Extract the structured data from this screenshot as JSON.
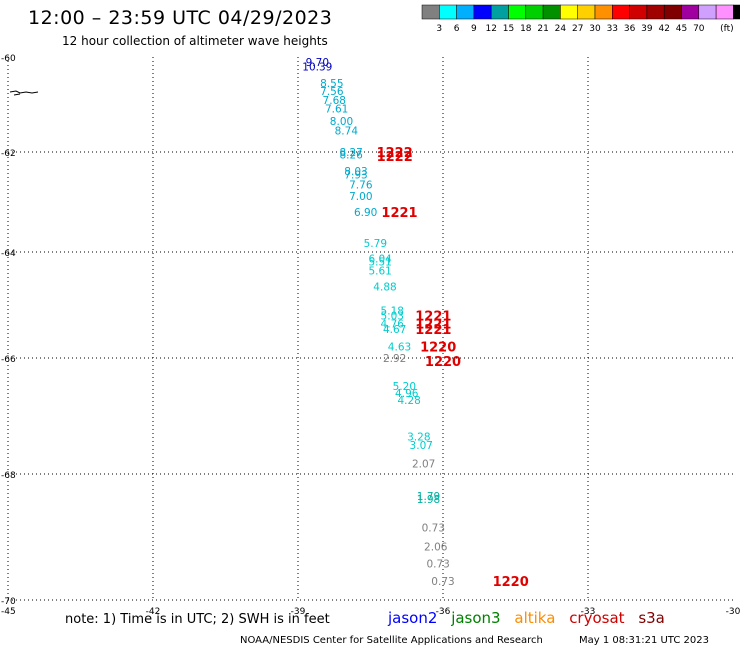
{
  "header": {
    "title": "12:00 – 23:59 UTC 04/29/2023",
    "subtitle": "12 hour collection of altimeter wave heights"
  },
  "colorbar": {
    "colors": [
      "#808080",
      "#00ffff",
      "#00b0ff",
      "#0000ff",
      "#00a0a0",
      "#00ff00",
      "#00d000",
      "#009000",
      "#ffff00",
      "#ffd000",
      "#ff9000",
      "#ff0000",
      "#d00000",
      "#a00000",
      "#800000",
      "#a000a0",
      "#d0a0ff",
      "#ff90ff",
      "#000000"
    ],
    "labels": [
      "3",
      "6",
      "9",
      "12",
      "15",
      "18",
      "21",
      "24",
      "27",
      "30",
      "33",
      "36",
      "39",
      "42",
      "45",
      "70"
    ],
    "unit": "(ft)"
  },
  "axes": {
    "lon_ticks": [
      "-45",
      "-42",
      "-39",
      "-36",
      "-33",
      "-30"
    ],
    "lat_ticks": [
      "-60",
      "-62",
      "-64",
      "-66",
      "-68",
      "-70"
    ]
  },
  "chart_data": {
    "type": "scatter",
    "xlabel": "",
    "ylabel": "",
    "xlim": [
      -45,
      -30
    ],
    "ylim": [
      -70,
      -60
    ],
    "grid": true,
    "points": [
      {
        "lon": -38.6,
        "lat": -60.1,
        "v": "9.70",
        "color": "#0000c0"
      },
      {
        "lon": -38.6,
        "lat": -60.2,
        "v": "10.39",
        "color": "#0000c0"
      },
      {
        "lon": -38.3,
        "lat": -60.55,
        "v": "8.55",
        "color": "#00aacc"
      },
      {
        "lon": -38.3,
        "lat": -60.72,
        "v": "7.56",
        "color": "#00aacc"
      },
      {
        "lon": -38.25,
        "lat": -60.9,
        "v": "7.68",
        "color": "#00aacc"
      },
      {
        "lon": -38.2,
        "lat": -61.08,
        "v": "7.61",
        "color": "#00aacc"
      },
      {
        "lon": -38.1,
        "lat": -61.35,
        "v": "8.00",
        "color": "#00aacc"
      },
      {
        "lon": -38.0,
        "lat": -61.55,
        "v": "8.74",
        "color": "#00aacc"
      },
      {
        "lon": -37.9,
        "lat": -62.0,
        "v": "8.27",
        "color": "#00aacc"
      },
      {
        "lon": -37.9,
        "lat": -62.05,
        "v": "8.26",
        "color": "#00aacc"
      },
      {
        "lon": -37.8,
        "lat": -62.38,
        "v": "8.03",
        "color": "#00aacc"
      },
      {
        "lon": -37.8,
        "lat": -62.45,
        "v": "7.93",
        "color": "#00aacc"
      },
      {
        "lon": -37.7,
        "lat": -62.65,
        "v": "7.76",
        "color": "#00aacc"
      },
      {
        "lon": -37.7,
        "lat": -62.88,
        "v": "7.00",
        "color": "#00aacc"
      },
      {
        "lon": -37.6,
        "lat": -63.2,
        "v": "6.90",
        "color": "#00aacc"
      },
      {
        "lon": -37.4,
        "lat": -63.82,
        "v": "5.79",
        "color": "#00cccc"
      },
      {
        "lon": -37.3,
        "lat": -64.12,
        "v": "6.04",
        "color": "#00cccc"
      },
      {
        "lon": -37.3,
        "lat": -64.18,
        "v": "5.51",
        "color": "#00cccc"
      },
      {
        "lon": -37.3,
        "lat": -64.35,
        "v": "5.61",
        "color": "#00cccc"
      },
      {
        "lon": -37.2,
        "lat": -64.65,
        "v": "4.88",
        "color": "#00cccc"
      },
      {
        "lon": -37.05,
        "lat": -65.1,
        "v": "5.18",
        "color": "#00cccc"
      },
      {
        "lon": -37.05,
        "lat": -65.2,
        "v": "5.03",
        "color": "#00cccc"
      },
      {
        "lon": -37.05,
        "lat": -65.35,
        "v": "4.76",
        "color": "#00cccc"
      },
      {
        "lon": -37.0,
        "lat": -65.45,
        "v": "4.67",
        "color": "#00cccc"
      },
      {
        "lon": -36.9,
        "lat": -65.78,
        "v": "4.63",
        "color": "#00cccc"
      },
      {
        "lon": -37.0,
        "lat": -66.0,
        "v": "2.92",
        "color": "#808080"
      },
      {
        "lon": -36.8,
        "lat": -66.48,
        "v": "5.20",
        "color": "#00cccc"
      },
      {
        "lon": -36.75,
        "lat": -66.6,
        "v": "4.96",
        "color": "#00cccc"
      },
      {
        "lon": -36.7,
        "lat": -66.72,
        "v": "4.28",
        "color": "#00cccc"
      },
      {
        "lon": -36.5,
        "lat": -67.35,
        "v": "3.28",
        "color": "#00cccc"
      },
      {
        "lon": -36.45,
        "lat": -67.5,
        "v": "3.07",
        "color": "#00cccc"
      },
      {
        "lon": -36.4,
        "lat": -67.82,
        "v": "2.07",
        "color": "#808080"
      },
      {
        "lon": -36.3,
        "lat": -68.35,
        "v": "1.79",
        "color": "#00b0a0"
      },
      {
        "lon": -36.3,
        "lat": -68.4,
        "v": "1.98",
        "color": "#00b0a0"
      },
      {
        "lon": -36.2,
        "lat": -68.85,
        "v": "0.73",
        "color": "#808080"
      },
      {
        "lon": -36.15,
        "lat": -69.15,
        "v": "2.06",
        "color": "#808080"
      },
      {
        "lon": -36.1,
        "lat": -69.42,
        "v": "0.73",
        "color": "#808080"
      },
      {
        "lon": -36.0,
        "lat": -69.7,
        "v": "0.73",
        "color": "#808080"
      }
    ],
    "times": [
      {
        "lon": -37.0,
        "lat": -62.0,
        "v": "1222"
      },
      {
        "lon": -37.0,
        "lat": -62.08,
        "v": "1222"
      },
      {
        "lon": -36.9,
        "lat": -63.2,
        "v": "1221"
      },
      {
        "lon": -36.2,
        "lat": -65.2,
        "v": "1221"
      },
      {
        "lon": -36.2,
        "lat": -65.35,
        "v": "1221"
      },
      {
        "lon": -36.2,
        "lat": -65.45,
        "v": "1221"
      },
      {
        "lon": -36.1,
        "lat": -65.78,
        "v": "1220"
      },
      {
        "lon": -36.0,
        "lat": -66.05,
        "v": "1220"
      },
      {
        "lon": -34.6,
        "lat": -69.7,
        "v": "1220"
      }
    ]
  },
  "note": "note: 1) Time is in UTC; 2) SWH is in feet",
  "legend": [
    {
      "name": "jason2",
      "color": "#0000ff"
    },
    {
      "name": "jason3",
      "color": "#008000"
    },
    {
      "name": "altika",
      "color": "#ff8c00"
    },
    {
      "name": "cryosat",
      "color": "#d00000"
    },
    {
      "name": "s3a",
      "color": "#800000"
    }
  ],
  "footer": {
    "left": "NOAA/NESDIS Center for Satellite Applications and Research",
    "right": "May  1 08:31:21 UTC 2023"
  }
}
